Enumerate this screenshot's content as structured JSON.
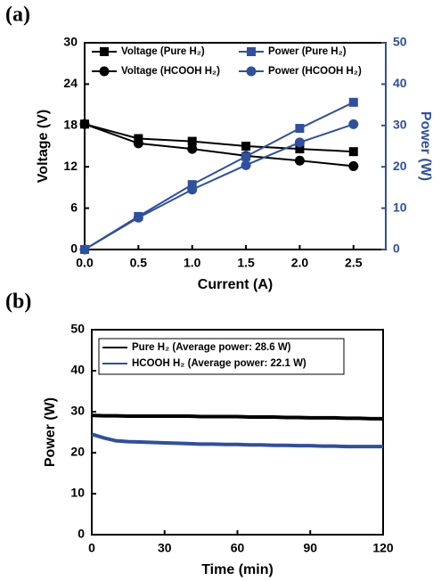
{
  "chart_data": [
    {
      "type": "line",
      "panel_label": "(a)",
      "xlabel": "Current (A)",
      "ylabel": "Voltage (V)",
      "y2label": "Power (W)",
      "y2_color": "#2f4f9f",
      "x": [
        0,
        0.5,
        1.0,
        1.5,
        2.0,
        2.5
      ],
      "xlim": [
        0,
        2.8
      ],
      "xticks": [
        {
          "value": 0,
          "label": "0.0"
        },
        0.5,
        {
          "value": 1,
          "label": "1.0"
        },
        1.5,
        {
          "value": 2,
          "label": "2.0"
        },
        2.5
      ],
      "ylim": [
        0,
        30
      ],
      "yticks": [
        0,
        6,
        12,
        18,
        24,
        30
      ],
      "y2lim": [
        0,
        50
      ],
      "y2ticks": [
        0,
        10,
        20,
        30,
        40,
        50
      ],
      "legend": "top",
      "legend_columns": 2,
      "line_width": 2,
      "series": [
        {
          "name": "Voltage (Pure H₂)",
          "color": "#000000",
          "marker": "square",
          "values": [
            18.2,
            16.1,
            15.7,
            15.0,
            14.6,
            14.2
          ]
        },
        {
          "name": "Voltage (HCOOH H₂)",
          "color": "#000000",
          "marker": "circle",
          "values": [
            18.2,
            15.4,
            14.6,
            13.6,
            12.9,
            12.1
          ]
        },
        {
          "name": "Power (Pure H₂)",
          "color": "#2f4f9f",
          "marker": "square",
          "axis": "y2",
          "values": [
            0,
            8.0,
            15.7,
            22.5,
            29.3,
            35.6
          ]
        },
        {
          "name": "Power (HCOOH H₂)",
          "color": "#2f4f9f",
          "marker": "circle",
          "axis": "y2",
          "values": [
            0,
            7.7,
            14.5,
            20.4,
            25.9,
            30.3
          ]
        }
      ]
    },
    {
      "type": "line",
      "panel_label": "(b)",
      "xlabel": "Time (min)",
      "ylabel": "Power (W)",
      "x": [
        0,
        5,
        10,
        15,
        20,
        25,
        30,
        35,
        40,
        45,
        50,
        55,
        60,
        65,
        70,
        75,
        80,
        85,
        90,
        95,
        100,
        105,
        110,
        115,
        120
      ],
      "xlim": [
        0,
        120
      ],
      "xticks": [
        0,
        30,
        60,
        90,
        120
      ],
      "ylim": [
        0,
        50
      ],
      "yticks": [
        0,
        10,
        20,
        30,
        40,
        50
      ],
      "legend": "upper left",
      "legend_columns": 1,
      "line_width": 4,
      "series": [
        {
          "name": "Pure H₂ (Average power: 28.6 W)",
          "color": "#000000",
          "marker": "none",
          "values": [
            29.1,
            29.0,
            29.0,
            28.9,
            28.9,
            28.9,
            28.9,
            28.9,
            28.9,
            28.8,
            28.8,
            28.8,
            28.8,
            28.7,
            28.7,
            28.7,
            28.6,
            28.6,
            28.5,
            28.5,
            28.5,
            28.4,
            28.4,
            28.3,
            28.3
          ]
        },
        {
          "name": "HCOOH H₂ (Average power: 22.1 W)",
          "color": "#2f4f9f",
          "marker": "none",
          "values": [
            24.5,
            23.6,
            22.9,
            22.7,
            22.6,
            22.5,
            22.4,
            22.3,
            22.2,
            22.1,
            22.1,
            22.0,
            22.0,
            21.9,
            21.9,
            21.8,
            21.8,
            21.7,
            21.7,
            21.6,
            21.6,
            21.5,
            21.5,
            21.5,
            21.5
          ]
        }
      ]
    }
  ]
}
